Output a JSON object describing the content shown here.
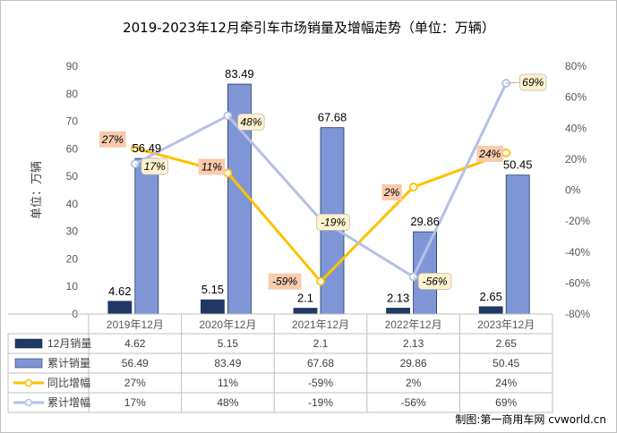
{
  "chart_data": {
    "type": "bar",
    "title": "2019-2023年12月牵引车市场销量及增幅走势（单位：万辆）",
    "ylabel": "单位：万辆",
    "ylim": [
      0,
      90
    ],
    "yticks": [
      "0",
      "10",
      "20",
      "30",
      "40",
      "50",
      "60",
      "70",
      "80",
      "90"
    ],
    "y2lim": [
      -80,
      80
    ],
    "y2ticks": [
      "-80%",
      "-60%",
      "-40%",
      "-20%",
      "0%",
      "20%",
      "40%",
      "60%",
      "80%"
    ],
    "categories": [
      "2019年12月",
      "2020年12月",
      "2021年12月",
      "2022年12月",
      "2023年12月"
    ],
    "series": [
      {
        "name": "12月销量",
        "kind": "bar",
        "axis": "left",
        "color": "#203864",
        "values": [
          4.62,
          5.15,
          2.1,
          2.13,
          2.65
        ],
        "labels": [
          "4.62",
          "5.15",
          "2.1",
          "2.13",
          "2.65"
        ],
        "table": [
          "4.62",
          "5.15",
          "2.1",
          "2.13",
          "2.65"
        ]
      },
      {
        "name": "累计销量",
        "kind": "bar",
        "axis": "left",
        "color": "#7f96d6",
        "values": [
          56.49,
          83.49,
          67.68,
          29.86,
          50.45
        ],
        "labels": [
          "56.49",
          "83.49",
          "67.68",
          "29.86",
          "50.45"
        ],
        "table": [
          "56.49",
          "83.49",
          "67.68",
          "29.86",
          "50.45"
        ]
      },
      {
        "name": "同比增幅",
        "kind": "line",
        "axis": "right",
        "color": "#ffc000",
        "values": [
          27,
          11,
          -59,
          2,
          24
        ],
        "labels": [
          "27%",
          "11%",
          "-59%",
          "2%",
          "24%"
        ],
        "table": [
          "27%",
          "11%",
          "-59%",
          "2%",
          "24%"
        ]
      },
      {
        "name": "累计增幅",
        "kind": "line",
        "axis": "right",
        "color": "#b4c0e6",
        "values": [
          17,
          48,
          -19,
          -56,
          69
        ],
        "labels": [
          "17%",
          "48%",
          "-19%",
          "-56%",
          "69%"
        ],
        "table": [
          "17%",
          "48%",
          "-19%",
          "-56%",
          "69%"
        ]
      }
    ],
    "grid": false,
    "legend": "data table below chart"
  },
  "credit": "制图:第一商用车网 cvworld.cn"
}
